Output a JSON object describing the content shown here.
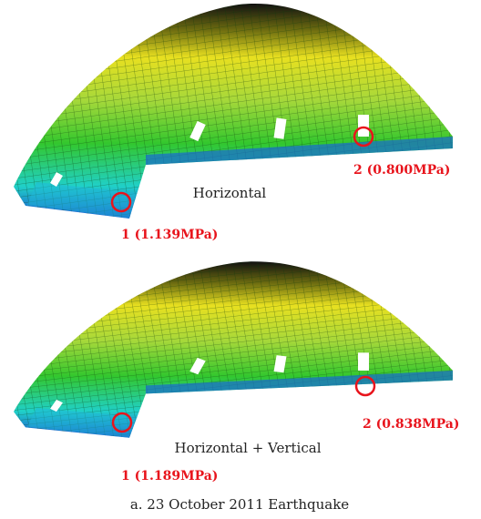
{
  "panels": [
    {
      "label": "Horizontal",
      "points": [
        "1 (1.139MPa)",
        "2 (0.800MPa)"
      ]
    },
    {
      "label": "Horizontal + Vertical",
      "points": [
        "1 (1.189MPa)",
        "2 (0.838MPa)"
      ]
    }
  ],
  "caption": "a. 23 October 2011 Earthquake"
}
